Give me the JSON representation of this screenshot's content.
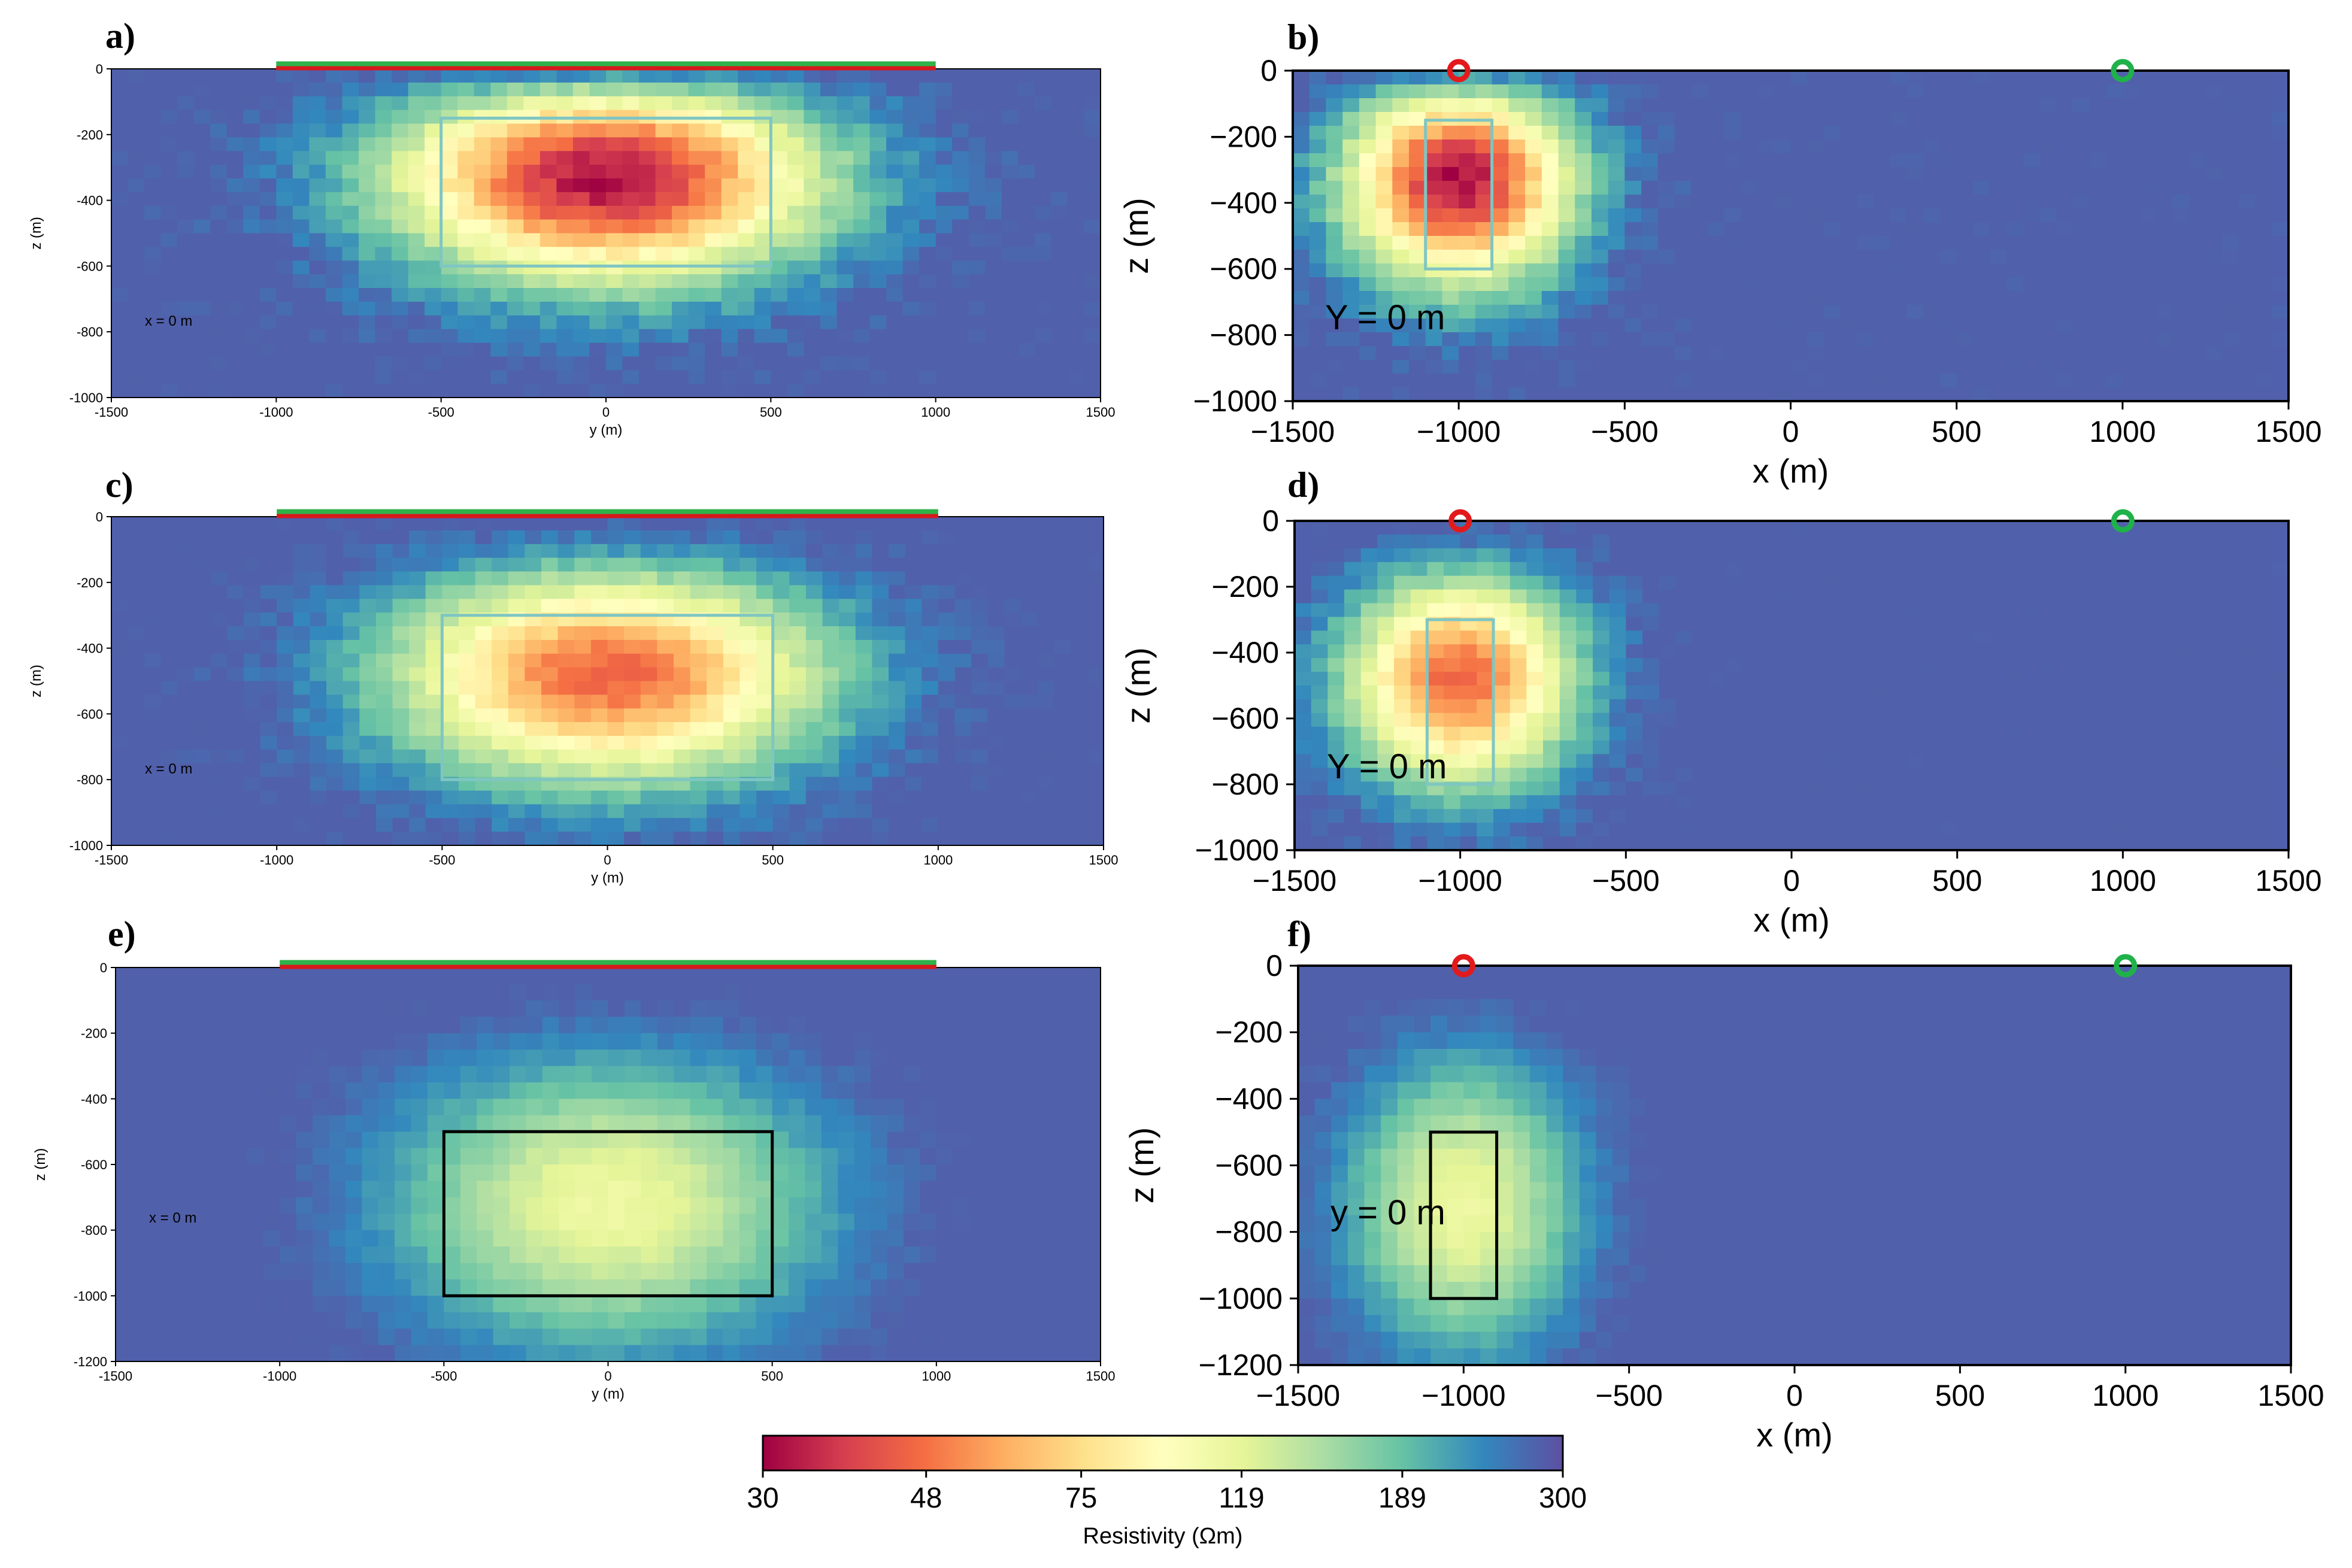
{
  "chart_data": [
    {
      "type": "heatmap",
      "panel": "a",
      "letter": "a)",
      "orient": "y",
      "xlabel": "y (m)",
      "ylabel": "z (m)",
      "annotation": "x = 0 m",
      "xlim": [
        -1500,
        1500
      ],
      "ylim": [
        -1000,
        0
      ],
      "xticks": [
        -1500,
        -1000,
        -500,
        0,
        500,
        1000,
        1500
      ],
      "yticks": [
        0,
        -200,
        -400,
        -600,
        -800,
        -1000
      ],
      "target_box": {
        "x": [
          -500,
          500
        ],
        "z": [
          -600,
          -150
        ],
        "color": "#7fc6c2"
      },
      "surface_lines": {
        "from": -1000,
        "to": 1000,
        "colors": [
          "#2fb24a",
          "#d7191c"
        ]
      },
      "anomaly": {
        "center": [
          0,
          -320
        ],
        "min_resistivity": 30,
        "background": 300
      },
      "ticks_label_style": "small"
    },
    {
      "type": "heatmap",
      "panel": "b",
      "letter": "b)",
      "orient": "x",
      "xlabel": "x (m)",
      "ylabel": "z (m)",
      "annotation": "Y = 0 m",
      "xlim": [
        -1500,
        1500
      ],
      "ylim": [
        -1000,
        0
      ],
      "xticks": [
        -1500,
        -1000,
        -500,
        0,
        500,
        1000,
        1500
      ],
      "yticks": [
        0,
        -200,
        -400,
        -600,
        -800,
        -1000
      ],
      "target_box": {
        "x": [
          -1100,
          -900
        ],
        "z": [
          -600,
          -150
        ],
        "color": "#7fc6c2"
      },
      "markers": [
        {
          "x": -1000,
          "color": "#e31a1c"
        },
        {
          "x": 1000,
          "color": "#1fb24a"
        }
      ],
      "anomaly": {
        "center": [
          -1000,
          -320
        ],
        "min_resistivity": 30,
        "background": 300
      },
      "ticks_label_style": "large"
    },
    {
      "type": "heatmap",
      "panel": "c",
      "letter": "c)",
      "orient": "y",
      "xlabel": "y (m)",
      "ylabel": "z (m)",
      "annotation": "x = 0 m",
      "xlim": [
        -1500,
        1500
      ],
      "ylim": [
        -1000,
        0
      ],
      "xticks": [
        -1500,
        -1000,
        -500,
        0,
        500,
        1000,
        1500
      ],
      "yticks": [
        0,
        -200,
        -400,
        -600,
        -800,
        -1000
      ],
      "target_box": {
        "x": [
          -500,
          500
        ],
        "z": [
          -800,
          -300
        ],
        "color": "#7fc6c2"
      },
      "surface_lines": {
        "from": -1000,
        "to": 1000,
        "colors": [
          "#2fb24a",
          "#d7191c"
        ]
      },
      "anomaly": {
        "center": [
          0,
          -480
        ],
        "min_resistivity": 45,
        "background": 300
      },
      "ticks_label_style": "small"
    },
    {
      "type": "heatmap",
      "panel": "d",
      "letter": "d)",
      "orient": "x",
      "xlabel": "x (m)",
      "ylabel": "z (m)",
      "annotation": "Y = 0 m",
      "xlim": [
        -1500,
        1500
      ],
      "ylim": [
        -1000,
        0
      ],
      "xticks": [
        -1500,
        -1000,
        -500,
        0,
        500,
        1000,
        1500
      ],
      "yticks": [
        0,
        -200,
        -400,
        -600,
        -800,
        -1000
      ],
      "target_box": {
        "x": [
          -1100,
          -900
        ],
        "z": [
          -800,
          -300
        ],
        "color": "#7fc6c2"
      },
      "markers": [
        {
          "x": -1000,
          "color": "#e31a1c"
        },
        {
          "x": 1000,
          "color": "#1fb24a"
        }
      ],
      "anomaly": {
        "center": [
          -1000,
          -480
        ],
        "min_resistivity": 45,
        "background": 300
      },
      "ticks_label_style": "large"
    },
    {
      "type": "heatmap",
      "panel": "e",
      "letter": "e)",
      "orient": "y",
      "xlabel": "y (m)",
      "ylabel": "z (m)",
      "annotation": "x = 0 m",
      "xlim": [
        -1500,
        1500
      ],
      "ylim": [
        -1200,
        0
      ],
      "xticks": [
        -1500,
        -1000,
        -500,
        0,
        500,
        1000,
        1500
      ],
      "yticks": [
        0,
        -200,
        -400,
        -600,
        -800,
        -1000,
        -1200
      ],
      "target_box": {
        "x": [
          -500,
          500
        ],
        "z": [
          -1000,
          -500
        ],
        "color": "#000000"
      },
      "surface_lines": {
        "from": -1000,
        "to": 1000,
        "colors": [
          "#2fb24a",
          "#d7191c"
        ]
      },
      "anomaly": {
        "center": [
          0,
          -720
        ],
        "min_resistivity": 110,
        "background": 300
      },
      "ticks_label_style": "small"
    },
    {
      "type": "heatmap",
      "panel": "f",
      "letter": "f)",
      "orient": "x",
      "xlabel": "x (m)",
      "ylabel": "z (m)",
      "annotation": "y = 0 m",
      "xlim": [
        -1500,
        1500
      ],
      "ylim": [
        -1200,
        0
      ],
      "xticks": [
        -1500,
        -1000,
        -500,
        0,
        500,
        1000,
        1500
      ],
      "yticks": [
        0,
        -200,
        -400,
        -600,
        -800,
        -1000,
        -1200
      ],
      "target_box": {
        "x": [
          -1100,
          -900
        ],
        "z": [
          -1000,
          -500
        ],
        "color": "#000000"
      },
      "markers": [
        {
          "x": -1000,
          "color": "#e31a1c"
        },
        {
          "x": 1000,
          "color": "#1fb24a"
        }
      ],
      "anomaly": {
        "center": [
          -1000,
          -720
        ],
        "min_resistivity": 110,
        "background": 300
      },
      "ticks_label_style": "large"
    }
  ],
  "colorbar": {
    "label": "Resistivity (Ωm)",
    "ticks": [
      30,
      48,
      75,
      119,
      189,
      300
    ],
    "scale": "log",
    "colormap": "Spectral",
    "colors": [
      "#9e0142",
      "#d53e4f",
      "#f46d43",
      "#fdae61",
      "#fee08b",
      "#ffffbf",
      "#e6f598",
      "#abdda4",
      "#66c2a5",
      "#3288bd",
      "#5e4fa2"
    ]
  }
}
